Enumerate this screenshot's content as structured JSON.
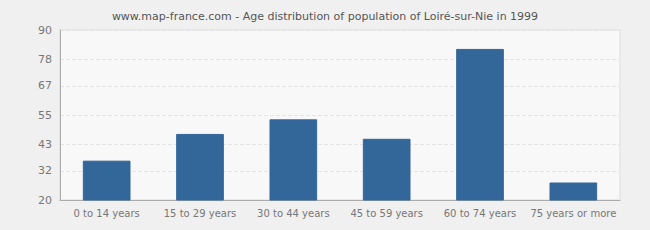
{
  "chart_data": {
    "type": "bar",
    "title": "www.map-france.com - Age distribution of population of Loiré-sur-Nie in 1999",
    "categories": [
      "0 to 14 years",
      "15 to 29 years",
      "30 to 44 years",
      "45 to 59 years",
      "60 to 74 years",
      "75 years or more"
    ],
    "values": [
      36,
      47,
      53,
      45,
      82,
      27
    ],
    "color": "#336699",
    "ylim": [
      20,
      90
    ],
    "yticks": [
      20,
      32,
      43,
      55,
      67,
      78,
      90
    ],
    "grid": true
  }
}
